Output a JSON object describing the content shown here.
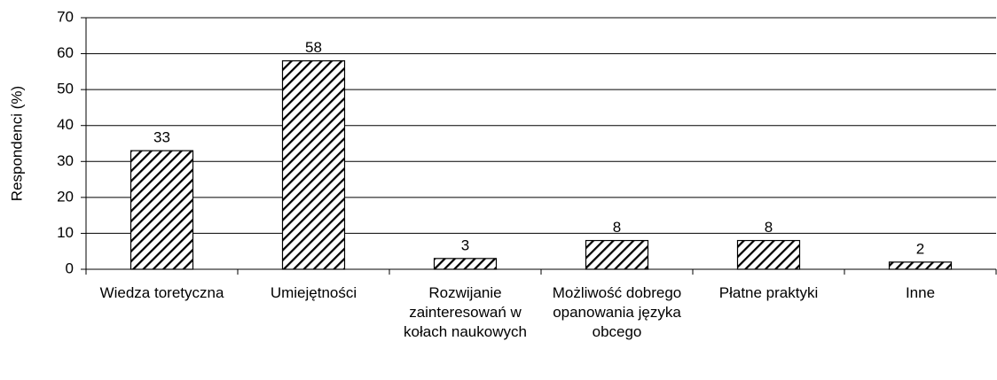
{
  "chart_data": {
    "type": "bar",
    "ylabel": "Respondenci (%)",
    "categories": [
      "Wiedza toretyczna",
      "Umiejętności",
      "Rozwijanie zainteresowań w kołach naukowych",
      "Możliwość dobrego opanowania języka obcego",
      "Płatne praktyki",
      "Inne"
    ],
    "values": [
      33,
      58,
      3,
      8,
      8,
      2
    ],
    "color": "#000000",
    "ylim": [
      0,
      70
    ],
    "yticks": [
      0,
      10,
      20,
      30,
      40,
      50,
      60,
      70
    ],
    "grid": true
  }
}
